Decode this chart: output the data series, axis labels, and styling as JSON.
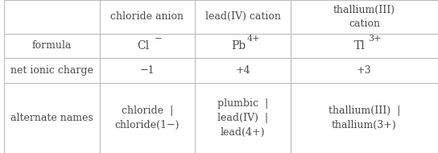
{
  "col_headers": [
    "",
    "chloride anion",
    "lead(IV) cation",
    "thallium(III)\ncation"
  ],
  "rows": [
    {
      "label": "formula",
      "cells": [
        {
          "text": "Cl",
          "superscript": "−"
        },
        {
          "text": "Pb",
          "superscript": "4+"
        },
        {
          "text": "Tl",
          "superscript": "3+"
        }
      ]
    },
    {
      "label": "net ionic charge",
      "cells": [
        {
          "text": "−1",
          "superscript": ""
        },
        {
          "text": "+4",
          "superscript": ""
        },
        {
          "text": "+3",
          "superscript": ""
        }
      ]
    },
    {
      "label": "alternate names",
      "cells": [
        {
          "text": "chloride  |\nchloride(1−)",
          "superscript": ""
        },
        {
          "text": "plumbic  |\nlead(IV)  |\nlead(4+)",
          "superscript": ""
        },
        {
          "text": "thallium(III)  |\nthallium(3+)",
          "superscript": ""
        }
      ]
    }
  ],
  "text_color": "#4a4a4a",
  "border_color": "#bbbbbb",
  "background_color": "#ffffff",
  "font_size": 9,
  "header_font_size": 9
}
